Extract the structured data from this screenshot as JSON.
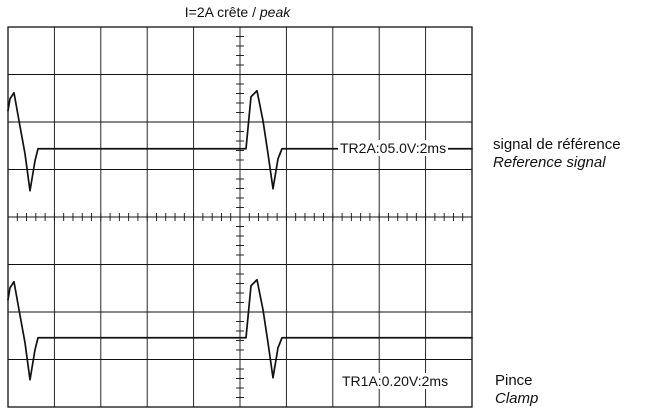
{
  "header": {
    "title_prefix": "I=2A crête / ",
    "title_emphasis": "peak"
  },
  "traces": [
    {
      "id": "reference",
      "readout": "TR2A:05.0V:2ms",
      "label_line1": "signal de référence",
      "label_line2": "Reference signal"
    },
    {
      "id": "clamp",
      "readout": "TR1A:0.20V:2ms",
      "label_line1": "Pince",
      "label_line2": "Clamp"
    }
  ],
  "scope": {
    "horizontal_divisions": 10,
    "vertical_divisions": 8,
    "minor_ticks_per_division": 5,
    "trace_color": "#111111",
    "grid_color": "#111111",
    "background_color": "#ffffff"
  }
}
